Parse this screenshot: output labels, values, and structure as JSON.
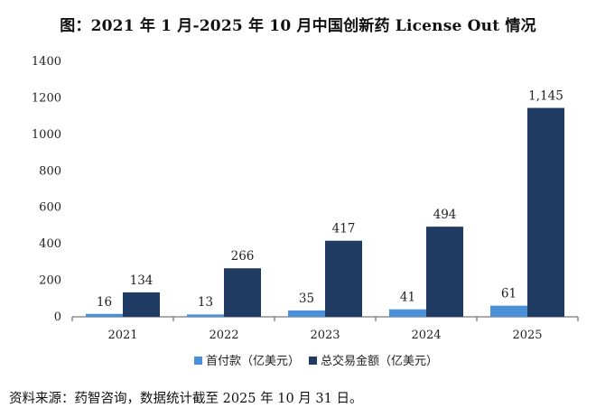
{
  "title": "图：2021 年 1 月-2025 年 10 月中国创新药 License Out 情况",
  "source": "资料来源：药智咨询，数据统计截至 2025 年 10 月 31 日。",
  "colors": {
    "upfront": "#4a90d9",
    "total": "#1f3b63",
    "axis": "#555555"
  },
  "chart_data": {
    "type": "bar",
    "title": "图：2021 年 1 月-2025 年 10 月中国创新药 License Out 情况",
    "categories": [
      "2021",
      "2022",
      "2023",
      "2024",
      "2025"
    ],
    "y_ticks": [
      "0",
      "200",
      "400",
      "600",
      "800",
      "1000",
      "1200",
      "1400"
    ],
    "ylim": [
      0,
      1400
    ],
    "grid": false,
    "legend_position": "bottom",
    "series": [
      {
        "name": "首付款（亿美元）",
        "values": [
          16,
          13,
          35,
          41,
          61
        ],
        "labels": [
          "16",
          "13",
          "35",
          "41",
          "61"
        ]
      },
      {
        "name": "总交易金额（亿美元）",
        "values": [
          134,
          266,
          417,
          494,
          1145
        ],
        "labels": [
          "134",
          "266",
          "417",
          "494",
          "1,145"
        ]
      }
    ]
  }
}
